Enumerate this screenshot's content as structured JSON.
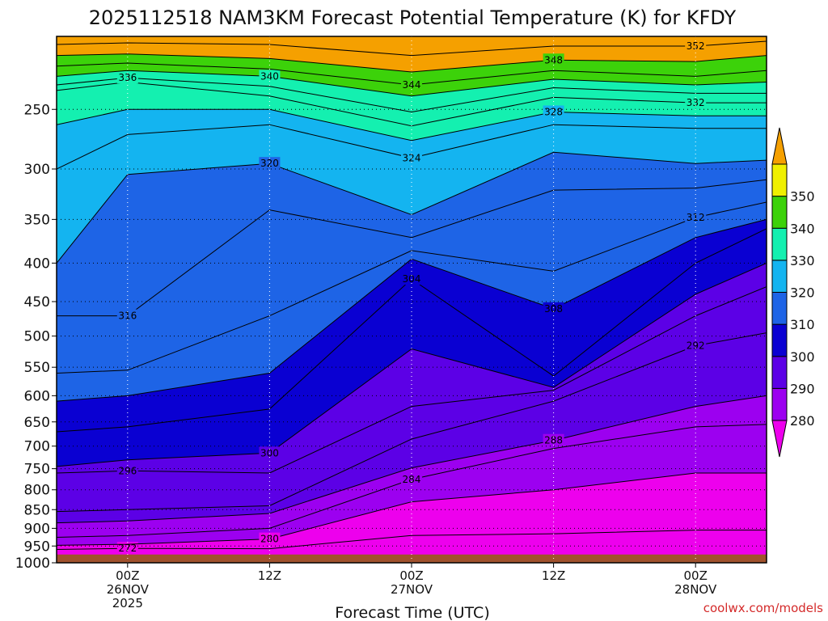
{
  "chart_data": {
    "type": "heatmap",
    "title": "2025112518 NAM3KM Forecast Potential Temperature (K) for KFDY",
    "xlabel": "Forecast Time (UTC)",
    "ylabel": "",
    "credit": "coolwx.com/models",
    "y_scale": "log-pressure",
    "ylim": [
      1000,
      200
    ],
    "y_ticks": [
      "250",
      "300",
      "350",
      "400",
      "450",
      "500",
      "550",
      "600",
      "650",
      "700",
      "750",
      "800",
      "850",
      "900",
      "950",
      "1000"
    ],
    "x_range_hours": [
      -6,
      54
    ],
    "x_ticks": [
      {
        "line1": "00Z",
        "line2": "26NOV",
        "line3": "2025"
      },
      {
        "line1": "12Z",
        "line2": "",
        "line3": ""
      },
      {
        "line1": "00Z",
        "line2": "27NOV",
        "line3": ""
      },
      {
        "line1": "12Z",
        "line2": "",
        "line3": ""
      },
      {
        "line1": "00Z",
        "line2": "28NOV",
        "line3": ""
      }
    ],
    "colorbar": {
      "levels": [
        280,
        290,
        300,
        310,
        320,
        330,
        340,
        350
      ],
      "labels": [
        "280",
        "290",
        "300",
        "310",
        "320",
        "330",
        "340",
        "350"
      ],
      "colors": [
        "#ed00ed",
        "#9c00f0",
        "#5c00e6",
        "#0a00d2",
        "#1e64e6",
        "#14b4f0",
        "#14f0b0",
        "#3cd20a",
        "#f0f000",
        "#f5a000"
      ]
    },
    "surface_color": "#a0522d",
    "grid": "dotted",
    "series": [
      {
        "label": "272",
        "values": [
          [
            -6,
            960
          ],
          [
            0,
            957
          ],
          [
            12,
            958
          ],
          [
            24,
            920
          ],
          [
            36,
            915
          ],
          [
            48,
            905
          ],
          [
            54,
            905
          ]
        ]
      },
      {
        "label": "280",
        "values": [
          [
            -6,
            948
          ],
          [
            0,
            945
          ],
          [
            12,
            930
          ],
          [
            24,
            830
          ],
          [
            36,
            800
          ],
          [
            48,
            760
          ],
          [
            54,
            760
          ]
        ]
      },
      {
        "label": "284",
        "values": [
          [
            -6,
            925
          ],
          [
            0,
            920
          ],
          [
            12,
            900
          ],
          [
            24,
            775
          ],
          [
            36,
            705
          ],
          [
            48,
            660
          ],
          [
            54,
            655
          ]
        ]
      },
      {
        "label": "288",
        "values": [
          [
            -6,
            885
          ],
          [
            0,
            880
          ],
          [
            12,
            860
          ],
          [
            24,
            748
          ],
          [
            36,
            688
          ],
          [
            48,
            620
          ],
          [
            54,
            600
          ]
        ]
      },
      {
        "label": "292",
        "values": [
          [
            -6,
            855
          ],
          [
            0,
            850
          ],
          [
            12,
            840
          ],
          [
            24,
            685
          ],
          [
            36,
            610
          ],
          [
            48,
            515
          ],
          [
            54,
            495
          ]
        ]
      },
      {
        "label": "296",
        "values": [
          [
            -6,
            760
          ],
          [
            0,
            755
          ],
          [
            12,
            760
          ],
          [
            24,
            620
          ],
          [
            36,
            590
          ],
          [
            48,
            470
          ],
          [
            54,
            430
          ]
        ]
      },
      {
        "label": "300",
        "values": [
          [
            -6,
            745
          ],
          [
            0,
            730
          ],
          [
            12,
            715
          ],
          [
            24,
            520
          ],
          [
            36,
            585
          ],
          [
            48,
            440
          ],
          [
            54,
            400
          ]
        ]
      },
      {
        "label": "304",
        "values": [
          [
            -6,
            670
          ],
          [
            0,
            660
          ],
          [
            12,
            625
          ],
          [
            24,
            420
          ],
          [
            36,
            565
          ],
          [
            48,
            400
          ],
          [
            54,
            360
          ]
        ]
      },
      {
        "label": "308",
        "values": [
          [
            -6,
            610
          ],
          [
            0,
            600
          ],
          [
            12,
            560
          ],
          [
            24,
            395
          ],
          [
            36,
            460
          ],
          [
            48,
            370
          ],
          [
            54,
            350
          ]
        ]
      },
      {
        "label": "312",
        "values": [
          [
            -6,
            560
          ],
          [
            0,
            555
          ],
          [
            12,
            470
          ],
          [
            24,
            385
          ],
          [
            36,
            410
          ],
          [
            48,
            348
          ],
          [
            54,
            332
          ]
        ]
      },
      {
        "label": "316",
        "values": [
          [
            -6,
            470
          ],
          [
            0,
            470
          ],
          [
            12,
            340
          ],
          [
            24,
            370
          ],
          [
            36,
            320
          ],
          [
            48,
            318
          ],
          [
            54,
            310
          ]
        ]
      },
      {
        "label": "320",
        "values": [
          [
            -6,
            400
          ],
          [
            0,
            305
          ],
          [
            12,
            295
          ],
          [
            24,
            345
          ],
          [
            36,
            285
          ],
          [
            48,
            295
          ],
          [
            54,
            292
          ]
        ]
      },
      {
        "label": "324",
        "values": [
          [
            -6,
            300
          ],
          [
            0,
            270
          ],
          [
            12,
            262
          ],
          [
            24,
            290
          ],
          [
            36,
            262
          ],
          [
            48,
            265
          ],
          [
            54,
            265
          ]
        ]
      },
      {
        "label": "328",
        "values": [
          [
            -6,
            262
          ],
          [
            0,
            250
          ],
          [
            12,
            250
          ],
          [
            24,
            275
          ],
          [
            36,
            252
          ],
          [
            48,
            255
          ],
          [
            54,
            255
          ]
        ]
      },
      {
        "label": "332",
        "values": [
          [
            -6,
            236
          ],
          [
            0,
            230
          ],
          [
            12,
            240
          ],
          [
            24,
            263
          ],
          [
            36,
            241
          ],
          [
            48,
            245
          ],
          [
            54,
            245
          ]
        ]
      },
      {
        "label": "336",
        "values": [
          [
            -6,
            232
          ],
          [
            0,
            227
          ],
          [
            12,
            233
          ],
          [
            24,
            252
          ],
          [
            36,
            234
          ],
          [
            48,
            238
          ],
          [
            54,
            238
          ]
        ]
      },
      {
        "label": "340",
        "values": [
          [
            -6,
            226
          ],
          [
            0,
            222
          ],
          [
            12,
            226
          ],
          [
            24,
            240
          ],
          [
            36,
            228
          ],
          [
            48,
            232
          ],
          [
            54,
            230
          ]
        ]
      },
      {
        "label": "344",
        "values": [
          [
            -6,
            219
          ],
          [
            0,
            217
          ],
          [
            12,
            221
          ],
          [
            24,
            232
          ],
          [
            36,
            222
          ],
          [
            48,
            226
          ],
          [
            54,
            222
          ]
        ]
      },
      {
        "label": "348",
        "values": [
          [
            -6,
            212
          ],
          [
            0,
            211
          ],
          [
            12,
            214
          ],
          [
            24,
            223
          ],
          [
            36,
            215
          ],
          [
            48,
            216
          ],
          [
            54,
            212
          ]
        ]
      },
      {
        "label": "352",
        "values": [
          [
            -6,
            205
          ],
          [
            0,
            204
          ],
          [
            12,
            205
          ],
          [
            24,
            212
          ],
          [
            36,
            206
          ],
          [
            48,
            206
          ],
          [
            54,
            203
          ]
        ]
      }
    ]
  }
}
